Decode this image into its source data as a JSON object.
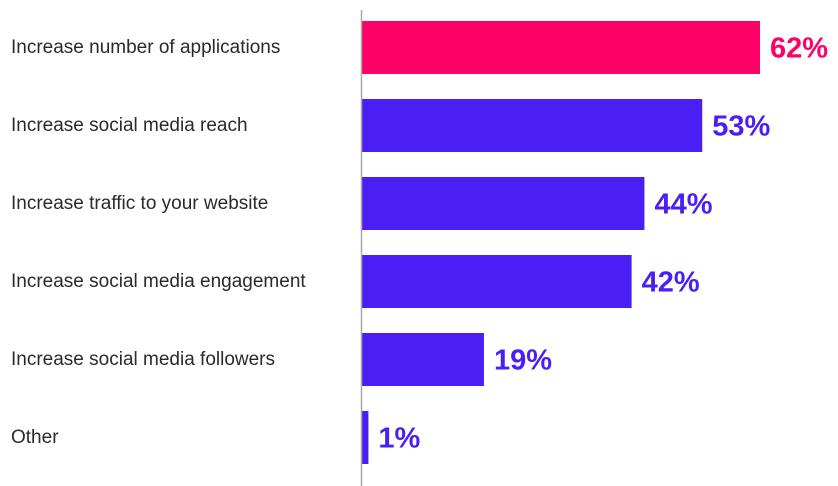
{
  "chart_data": {
    "type": "bar",
    "orientation": "horizontal",
    "categories": [
      "Increase number of applications",
      "Increase social media reach",
      "Increase traffic to your website",
      "Increase social media engagement",
      "Increase social media followers",
      "Other"
    ],
    "values": [
      62,
      53,
      44,
      42,
      19,
      1
    ],
    "value_labels": [
      "62%",
      "53%",
      "44%",
      "42%",
      "19%",
      "1%"
    ],
    "highlight_index": 0,
    "colors": {
      "highlight": "#ff0066",
      "default": "#4a1ff5",
      "axis": "#a8a8a8",
      "label": "#2a2a2a"
    },
    "xlim": [
      0,
      62
    ],
    "grid": false,
    "legend": "none"
  }
}
